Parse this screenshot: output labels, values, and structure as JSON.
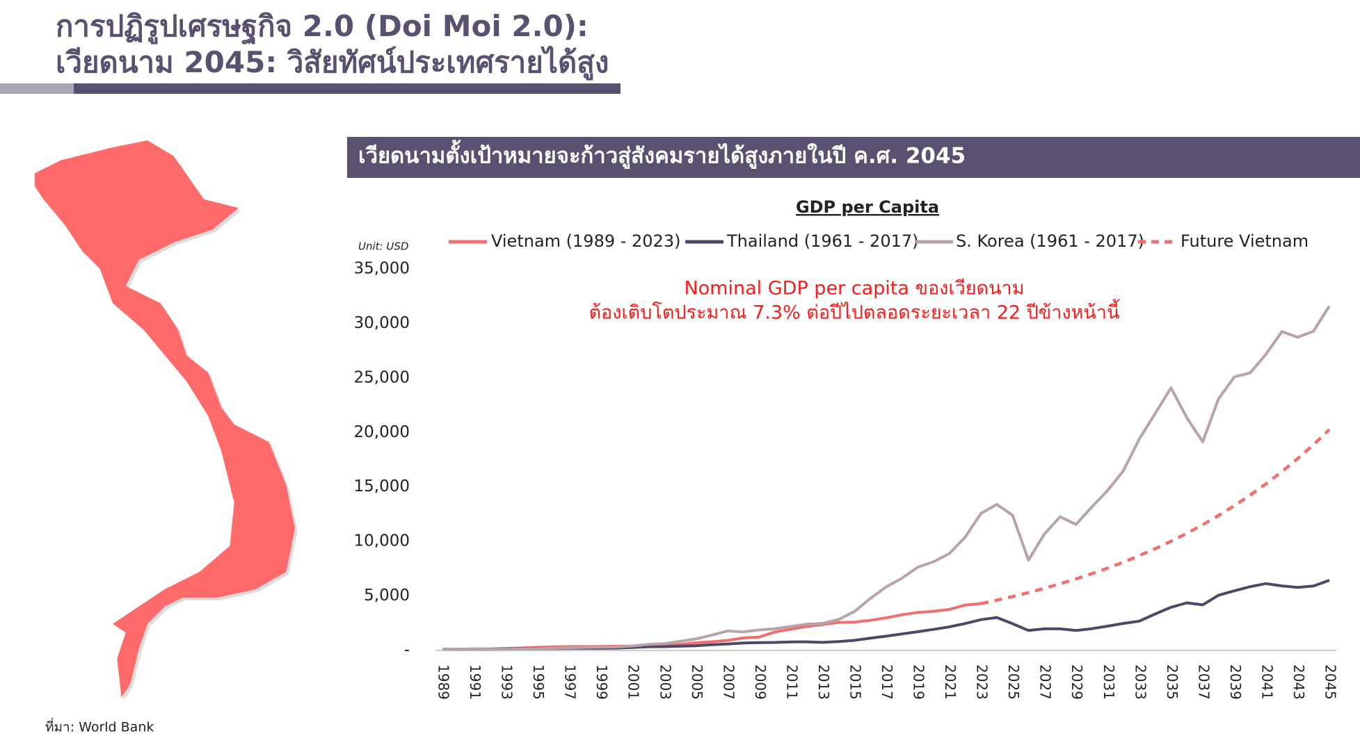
{
  "header": {
    "title_lines": [
      "การปฏิรูปเศรษฐกิจ 2.0 (Doi Moi 2.0):",
      "เวียดนาม 2045: วิสัยทัศน์ประเทศรายได้สูง"
    ],
    "subtitle": "เวียดนามตั้งเป้าหมายจะก้าวสู่สังคมรายได้สูงภายในปี ค.ศ. 2045"
  },
  "source": "ที่มา: World Bank",
  "chart_data": {
    "type": "line",
    "title": "GDP per Capita",
    "unit_label": "Unit: USD",
    "annotations": [
      "Nominal GDP per capita ของเวียดนาม",
      "ต้องเติบโตประมาณ 7.3% ต่อปีไปตลอดระยะเวลา 22 ปีข้างหน้านี้"
    ],
    "annotation_color": "#ff1a1a",
    "categories": [
      "1989",
      null,
      "1991",
      null,
      "1993",
      null,
      "1995",
      null,
      "1997",
      null,
      "1999",
      null,
      "2001",
      null,
      "2003",
      null,
      "2005",
      null,
      "2007",
      null,
      "2009",
      null,
      "2011",
      null,
      "2013",
      null,
      "2015",
      null,
      "2017",
      null,
      "2019",
      null,
      "2021",
      null,
      "2023",
      null,
      "2025",
      null,
      "2027",
      null,
      "2029",
      null,
      "2031",
      null,
      "2033",
      null,
      "2035",
      null,
      "2037",
      null,
      "2039",
      null,
      "2041",
      null,
      "2043",
      null,
      "2045"
    ],
    "series": [
      {
        "name": "Vietnam (1989 - 2023)",
        "color": "#f26d6d",
        "dashed": false,
        "values": [
          95,
          95,
          140,
          140,
          185,
          225,
          290,
          340,
          360,
          360,
          370,
          390,
          410,
          440,
          490,
          550,
          700,
          800,
          920,
          1150,
          1230,
          1700,
          1950,
          2200,
          2370,
          2560,
          2600,
          2760,
          2990,
          3270,
          3490,
          3590,
          3760,
          4160,
          4300,
          null,
          null,
          null,
          null,
          null,
          null,
          null,
          null,
          null,
          null,
          null,
          null,
          null,
          null,
          null,
          null,
          null,
          null,
          null,
          null,
          null,
          null
        ]
      },
      {
        "name": "Thailand (1961 - 2017)",
        "color": "#4e4866",
        "dashed": false,
        "values": [
          107,
          116,
          121,
          130,
          141,
          161,
          171,
          181,
          196,
          197,
          199,
          219,
          275,
          338,
          353,
          391,
          435,
          524,
          590,
          683,
          718,
          731,
          783,
          791,
          740,
          809,
          925,
          1119,
          1304,
          1508,
          1717,
          1929,
          2161,
          2467,
          2826,
          3025,
          2457,
          1827,
          1985,
          1983,
          1836,
          1998,
          2229,
          2480,
          2690,
          3350,
          3960,
          4370,
          4180,
          5060,
          5470,
          5850,
          6130,
          5920,
          5780,
          5910,
          6440
        ]
      },
      {
        "name": "S. Korea (1961 - 2017)",
        "color": "#b9a3ab",
        "dashed": false,
        "values": [
          94,
          106,
          146,
          124,
          108,
          133,
          161,
          198,
          244,
          279,
          301,
          324,
          406,
          563,
          617,
          834,
          1055,
          1405,
          1784,
          1711,
          1883,
          1993,
          2199,
          2413,
          2482,
          2835,
          3555,
          4749,
          5817,
          6610,
          7637,
          8127,
          8885,
          10385,
          12565,
          13403,
          12398,
          8282,
          10672,
          12257,
          11561,
          13165,
          14673,
          16496,
          19403,
          21743,
          24086,
          21350,
          19144,
          23087,
          25096,
          25467,
          27178,
          29253,
          28737,
          29288,
          31605
        ]
      },
      {
        "name": "Future Vietnam",
        "color": "#f26d6d",
        "dashed": true,
        "values": [
          null,
          null,
          null,
          null,
          null,
          null,
          null,
          null,
          null,
          null,
          null,
          null,
          null,
          null,
          null,
          null,
          null,
          null,
          null,
          null,
          null,
          null,
          null,
          null,
          null,
          null,
          null,
          null,
          null,
          null,
          null,
          null,
          null,
          null,
          4300,
          4614,
          4949,
          5311,
          5702,
          6115,
          6562,
          7043,
          7555,
          8106,
          8699,
          9335,
          10015,
          10746,
          11533,
          12375,
          13278,
          14246,
          15287,
          16405,
          17600,
          18886,
          20266
        ]
      }
    ],
    "ylim": [
      0,
      35000
    ],
    "yticks": [
      {
        "value": 0,
        "label": "-"
      },
      {
        "value": 5000,
        "label": "5,000"
      },
      {
        "value": 10000,
        "label": "10,000"
      },
      {
        "value": 15000,
        "label": "15,000"
      },
      {
        "value": 20000,
        "label": "20,000"
      },
      {
        "value": 25000,
        "label": "25,000"
      },
      {
        "value": 30000,
        "label": "30,000"
      },
      {
        "value": 35000,
        "label": "35,000"
      }
    ],
    "grid": false
  }
}
